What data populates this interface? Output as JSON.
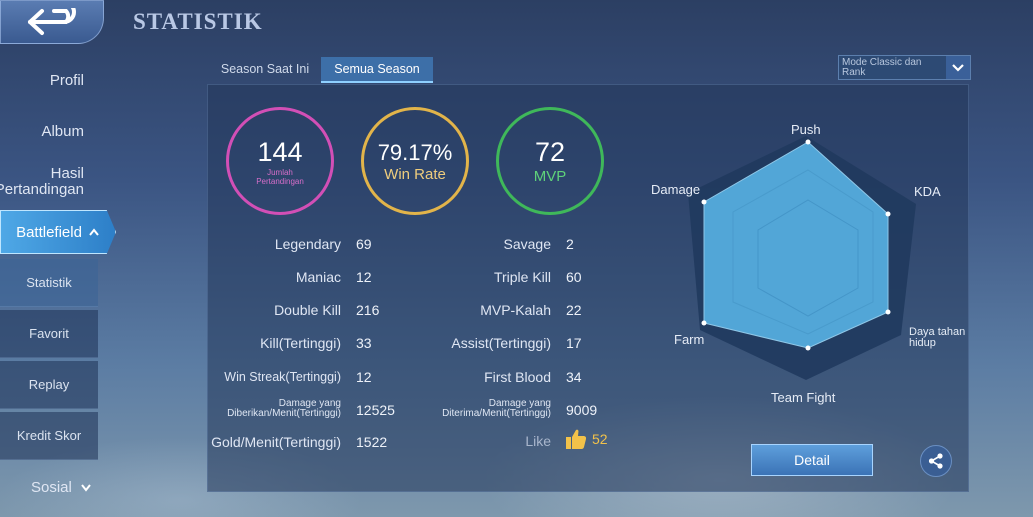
{
  "header": {
    "title": "STATISTIK"
  },
  "sidebar": {
    "items": [
      "Profil",
      "Album",
      "Hasil Pertandingan"
    ],
    "active": "Battlefield",
    "subitems": [
      "Statistik",
      "Favorit",
      "Replay",
      "Kredit Skor"
    ],
    "bottom": "Sosial"
  },
  "tabs": {
    "current": "Season Saat Ini",
    "all": "Semua Season"
  },
  "mode": {
    "selected": "Mode Classic dan Rank"
  },
  "summary": {
    "matches": {
      "value": "144",
      "label": "Jumlah Pertandingan",
      "color": "#d24fb6"
    },
    "winrate": {
      "value": "79.17%",
      "label": "Win Rate",
      "color": "#e2b44a"
    },
    "mvp": {
      "value": "72",
      "label": "MVP",
      "color": "#3fb85a"
    }
  },
  "stats_left": [
    {
      "label": "Legendary",
      "value": "69"
    },
    {
      "label": "Maniac",
      "value": "12"
    },
    {
      "label": "Double Kill",
      "value": "216"
    },
    {
      "label": "Kill(Tertinggi)",
      "value": "33"
    },
    {
      "label": "Win Streak(Tertinggi)",
      "value": "12"
    },
    {
      "label": "Damage yang Diberikan/Menit(Tertinggi)",
      "value": "12525"
    },
    {
      "label": "Gold/Menit(Tertinggi)",
      "value": "1522"
    }
  ],
  "stats_right": [
    {
      "label": "Savage",
      "value": "2"
    },
    {
      "label": "Triple Kill",
      "value": "60"
    },
    {
      "label": "MVP-Kalah",
      "value": "22"
    },
    {
      "label": "Assist(Tertinggi)",
      "value": "17"
    },
    {
      "label": "First Blood",
      "value": "34"
    },
    {
      "label": "Damage yang Diterima/Menit(Tertinggi)",
      "value": "9009"
    }
  ],
  "like": {
    "label": "Like",
    "value": "52"
  },
  "radar": {
    "axes": [
      "Push",
      "KDA",
      "Daya tahan hidup",
      "Team Fight",
      "Farm",
      "Damage"
    ]
  },
  "buttons": {
    "detail": "Detail"
  }
}
